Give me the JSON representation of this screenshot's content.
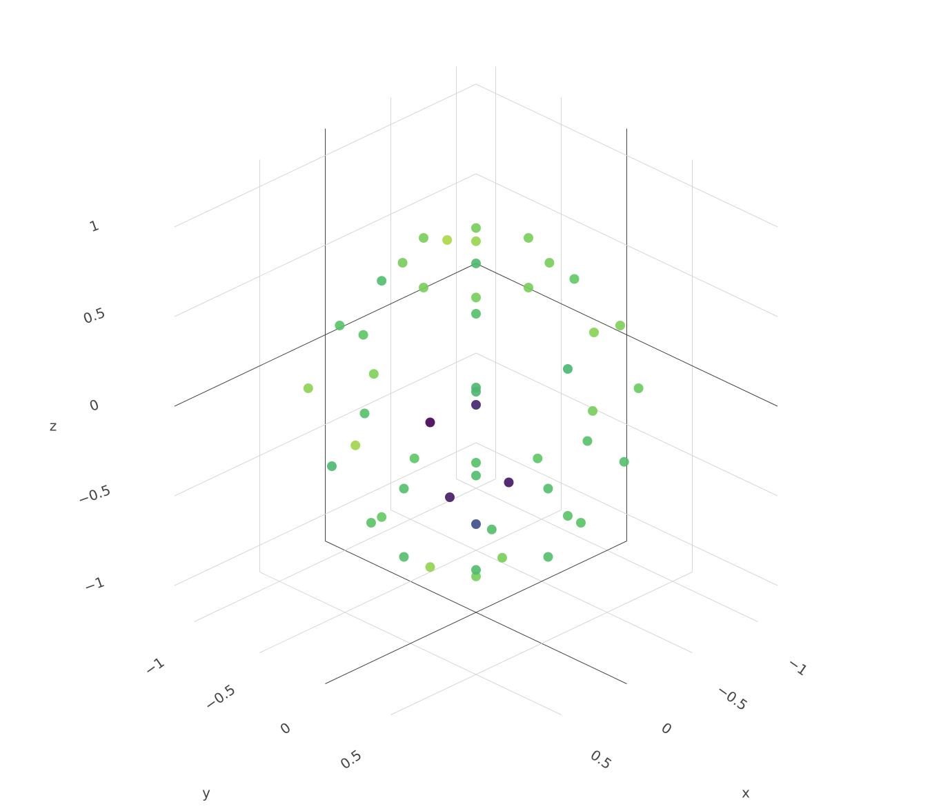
{
  "chart_data": {
    "type": "scatter3d",
    "x": [
      0.4,
      0.28,
      0,
      -0.28,
      -0.4,
      -0.28,
      0,
      0.28,
      0.78,
      0.5,
      0,
      -0.55,
      -0.75,
      -0.5,
      0,
      0.52,
      0.92,
      0.6,
      0,
      -0.62,
      -0.9,
      -0.6,
      0,
      0.64,
      0.8,
      0.33,
      0.82,
      0.5,
      0.1,
      -0.55,
      -0.84,
      -0.55,
      0.05,
      0.6,
      0.55,
      0.38,
      0,
      -0.4,
      -0.55,
      -0.38,
      0,
      0.4,
      0.1,
      -0.15,
      0.2,
      0,
      0.1,
      0.35,
      0.4,
      0.2,
      0.3,
      0.45
    ],
    "y": [
      0,
      0.28,
      0.4,
      0.28,
      0,
      -0.28,
      -0.4,
      -0.28,
      0,
      0.5,
      0.7,
      0.55,
      0,
      -0.5,
      -0.72,
      -0.52,
      0,
      0.6,
      0.85,
      0.62,
      0,
      -0.6,
      -0.86,
      -0.64,
      0.33,
      0.8,
      0.1,
      0.62,
      0.8,
      0.58,
      0.05,
      -0.55,
      -0.8,
      -0.5,
      0,
      0.38,
      0.55,
      0.4,
      0,
      -0.38,
      -0.55,
      -0.4,
      0.1,
      0.05,
      -0.15,
      0,
      -0.12,
      0.35,
      0.2,
      0.45,
      0.3,
      0.1
    ],
    "z": [
      0.8,
      0.8,
      0.8,
      0.8,
      0.8,
      0.8,
      0.8,
      0.8,
      0.45,
      0.45,
      0.45,
      0.45,
      0.45,
      0.45,
      0.45,
      0.45,
      0.1,
      0.1,
      0.1,
      0.1,
      0.1,
      0.1,
      0.1,
      0.1,
      0.1,
      0.1,
      -0.3,
      -0.3,
      -0.3,
      -0.3,
      -0.3,
      -0.3,
      -0.3,
      -0.3,
      -0.65,
      -0.65,
      -0.65,
      -0.65,
      -0.65,
      -0.65,
      -0.65,
      -0.65,
      -0.88,
      -0.88,
      -0.88,
      0.92,
      0.92,
      0.25,
      -0.3,
      -0.2,
      -0.45,
      0.1
    ],
    "colorscale": [
      "#440154",
      "#3b528b",
      "#21918c",
      "#5ec962",
      "#fde725"
    ],
    "cmin": 0.5,
    "cmax": 1.0,
    "xlim": [
      -1.15,
      1.15
    ],
    "ylim": [
      -1.15,
      1.15
    ],
    "zlim": [
      -1.15,
      1.15
    ],
    "xticks": [
      {
        "value": -1,
        "label": "−1"
      },
      {
        "value": -0.5,
        "label": "−0.5"
      },
      0,
      0.5
    ],
    "yticks": [
      {
        "value": -1,
        "label": "−1"
      },
      {
        "value": -0.5,
        "label": "−0.5"
      },
      0,
      0.5
    ],
    "zticks": [
      {
        "value": -1,
        "label": "−1"
      },
      {
        "value": -0.5,
        "label": "−0.5"
      },
      0,
      0.5,
      1
    ],
    "xaxis_title": "x",
    "yaxis_title": "y",
    "zaxis_title": "z",
    "grid": true
  }
}
